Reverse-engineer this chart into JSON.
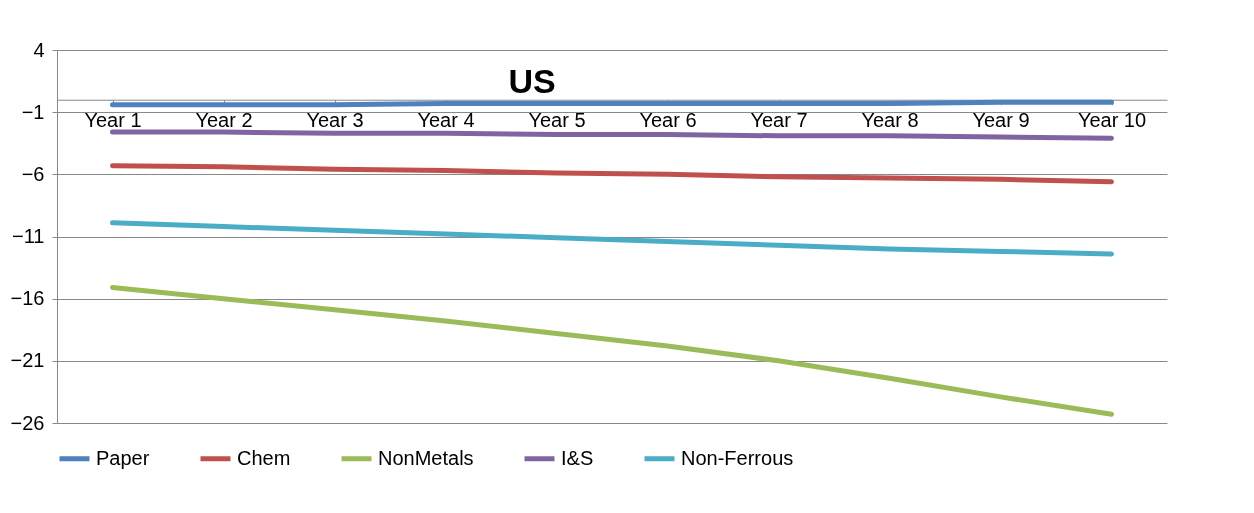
{
  "chart_data": {
    "type": "line",
    "title": "US",
    "categories": [
      "Year 1",
      "Year 2",
      "Year 3",
      "Year 4",
      "Year 5",
      "Year 6",
      "Year 7",
      "Year 8",
      "Year 9",
      "Year 10"
    ],
    "series": [
      {
        "name": "Paper",
        "color": "#4f81bd",
        "values": [
          -0.4,
          -0.4,
          -0.4,
          -0.3,
          -0.3,
          -0.3,
          -0.3,
          -0.3,
          -0.2,
          -0.2
        ]
      },
      {
        "name": "Chem",
        "color": "#c0504d",
        "values": [
          -5.3,
          -5.4,
          -5.6,
          -5.7,
          -5.9,
          -6.0,
          -6.2,
          -6.3,
          -6.4,
          -6.6
        ]
      },
      {
        "name": "NonMetals",
        "color": "#9bbb59",
        "values": [
          -15.1,
          -16.0,
          -16.9,
          -17.8,
          -18.8,
          -19.8,
          -21.0,
          -22.4,
          -23.9,
          -25.3
        ]
      },
      {
        "name": "I&S",
        "color": "#8064a2",
        "values": [
          -2.6,
          -2.6,
          -2.7,
          -2.7,
          -2.8,
          -2.8,
          -2.9,
          -2.9,
          -3.0,
          -3.1
        ]
      },
      {
        "name": "Non-Ferrous",
        "color": "#4bacc6",
        "values": [
          -9.9,
          -10.2,
          -10.5,
          -10.8,
          -11.1,
          -11.4,
          -11.7,
          -12.0,
          -12.2,
          -12.4
        ]
      }
    ],
    "ylim": [
      -26,
      4
    ],
    "yticks": [
      4,
      -1,
      -6,
      -11,
      -16,
      -21,
      -26
    ],
    "grid": "y",
    "legend": "bottom",
    "marker": "none",
    "line_style": "solid"
  }
}
